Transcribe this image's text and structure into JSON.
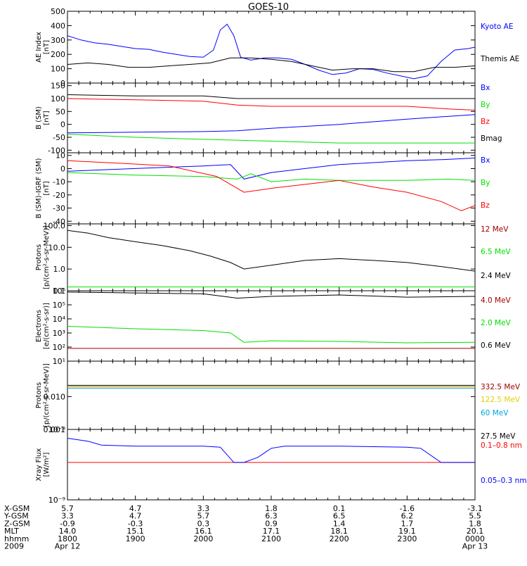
{
  "title": "GOES-10",
  "colors": {
    "black": "#000000",
    "blue": "#0000ff",
    "red": "#ff0000",
    "green": "#00e000",
    "darkred": "#a00000",
    "cyan": "#00a8e0",
    "yellow": "#e0d000"
  },
  "x_axis": {
    "start_hour": 18,
    "end_hour": 24,
    "date_row": {
      "label": "2009",
      "left": "Apr 12",
      "right": "Apr 13"
    },
    "rows": [
      {
        "label": "X-GSM",
        "values": [
          "5.7",
          "4.7",
          "3.3",
          "1.8",
          "0.1",
          "-1.6",
          "-3.1"
        ]
      },
      {
        "label": "Y-GSM",
        "values": [
          "3.3",
          "4.7",
          "5.7",
          "6.3",
          "6.5",
          "6.2",
          "5.5"
        ]
      },
      {
        "label": "Z-GSM",
        "values": [
          "-0.9",
          "-0.3",
          "0.3",
          "0.9",
          "1.4",
          "1.7",
          "1.8"
        ]
      },
      {
        "label": "MLT",
        "values": [
          "14.0",
          "15.1",
          "16.1",
          "17.1",
          "18.1",
          "19.1",
          "20.1"
        ]
      },
      {
        "label": "hhmm",
        "values": [
          "1800",
          "1900",
          "2000",
          "2100",
          "2200",
          "2300",
          "0000"
        ]
      }
    ]
  },
  "chart_data": [
    {
      "type": "line",
      "id": "ae",
      "ylabel": "AE Index\n[nT]",
      "ylim": [
        0,
        500
      ],
      "yticks": [
        "0",
        "100",
        "200",
        "300",
        "400",
        "500"
      ],
      "series": [
        {
          "name": "Kyoto AE",
          "color": "#0000ff",
          "x": [
            18.0,
            18.2,
            18.4,
            18.6,
            18.8,
            19.0,
            19.2,
            19.4,
            19.6,
            19.8,
            20.0,
            20.15,
            20.25,
            20.35,
            20.45,
            20.55,
            20.7,
            20.9,
            21.1,
            21.3,
            21.5,
            21.7,
            21.9,
            22.1,
            22.3,
            22.5,
            22.7,
            22.9,
            23.1,
            23.3,
            23.5,
            23.7,
            23.9,
            24.0
          ],
          "y": [
            330,
            300,
            280,
            270,
            255,
            240,
            235,
            215,
            200,
            185,
            180,
            230,
            370,
            410,
            330,
            180,
            160,
            175,
            175,
            165,
            130,
            90,
            60,
            70,
            100,
            95,
            70,
            50,
            30,
            50,
            150,
            230,
            240,
            250
          ]
        },
        {
          "name": "Themis AE",
          "color": "#000000",
          "x": [
            18.0,
            18.3,
            18.6,
            18.9,
            19.2,
            19.5,
            19.8,
            20.1,
            20.4,
            20.7,
            21.0,
            21.3,
            21.6,
            21.9,
            22.2,
            22.5,
            22.8,
            23.1,
            23.4,
            23.7,
            24.0
          ],
          "y": [
            130,
            140,
            130,
            110,
            110,
            120,
            130,
            140,
            175,
            175,
            165,
            150,
            120,
            90,
            100,
            100,
            80,
            80,
            110,
            110,
            120
          ]
        }
      ]
    },
    {
      "type": "line",
      "id": "bsm",
      "ylabel": "B (SM)\n[nT]",
      "ylim": [
        -110,
        160
      ],
      "yticks": [
        "-100",
        "-50",
        "0",
        "50",
        "100",
        "150"
      ],
      "series": [
        {
          "name": "Bx",
          "color": "#0000ff",
          "x": [
            18.0,
            19.0,
            20.0,
            20.5,
            21.0,
            22.0,
            23.0,
            24.0
          ],
          "y": [
            -33,
            -30,
            -28,
            -25,
            -15,
            0,
            20,
            38
          ]
        },
        {
          "name": "By",
          "color": "#00e000",
          "x": [
            18.0,
            19.0,
            20.0,
            21.0,
            22.0,
            23.0,
            24.0
          ],
          "y": [
            -38,
            -50,
            -58,
            -65,
            -72,
            -72,
            -72
          ]
        },
        {
          "name": "Bz",
          "color": "#ff0000",
          "x": [
            18.0,
            19.0,
            20.0,
            20.5,
            21.0,
            22.0,
            23.0,
            23.6,
            24.0
          ],
          "y": [
            100,
            95,
            90,
            75,
            70,
            70,
            70,
            60,
            55
          ]
        },
        {
          "name": "Bmag",
          "color": "#000000",
          "x": [
            18.0,
            19.0,
            20.0,
            20.5,
            21.0,
            22.0,
            23.0,
            24.0
          ],
          "y": [
            115,
            110,
            110,
            100,
            100,
            100,
            100,
            100
          ]
        }
      ]
    },
    {
      "type": "line",
      "id": "bdiff",
      "ylabel": "B (SM)-IGRF (SM)\n[nT]",
      "ylim": [
        -42,
        12
      ],
      "yticks": [
        "-40",
        "-30",
        "-20",
        "-10",
        "0",
        "10"
      ],
      "series": [
        {
          "name": "Bx",
          "color": "#0000ff",
          "x": [
            18.0,
            19.0,
            20.0,
            20.4,
            20.6,
            21.0,
            21.5,
            22.0,
            23.0,
            23.6,
            24.0
          ],
          "y": [
            -2,
            0,
            2,
            3,
            -8,
            -3,
            0,
            3,
            6,
            7,
            8
          ]
        },
        {
          "name": "By",
          "color": "#00e000",
          "x": [
            18.0,
            19.0,
            20.0,
            20.5,
            20.7,
            21.0,
            21.5,
            22.0,
            23.0,
            23.6,
            24.0
          ],
          "y": [
            -3,
            -5,
            -6,
            -8,
            -4,
            -10,
            -8,
            -9,
            -9,
            -8,
            -9
          ]
        },
        {
          "name": "Bz",
          "color": "#ff0000",
          "x": [
            18.0,
            18.8,
            19.5,
            20.2,
            20.4,
            20.6,
            21.0,
            21.5,
            22.0,
            22.5,
            23.0,
            23.5,
            23.8,
            24.0
          ],
          "y": [
            6,
            4,
            2,
            -6,
            -12,
            -18,
            -15,
            -12,
            -9,
            -14,
            -18,
            -25,
            -32,
            -28
          ]
        }
      ]
    },
    {
      "type": "line",
      "id": "protons1",
      "ylabel": "Protons\n[p/(cm²-s-sr-MeV)]",
      "yscale": "log",
      "ylim": [
        0.1,
        120
      ],
      "yticks": [
        "0.1",
        "1.0",
        "10.0",
        "100.0"
      ],
      "series": [
        {
          "name": "12 MeV",
          "color": "#a00000",
          "x": [
            18.0,
            24.0
          ],
          "y": [
            0.1,
            0.1
          ]
        },
        {
          "name": "6.5 MeV",
          "color": "#00e000",
          "x": [
            18.0,
            24.0
          ],
          "y": [
            0.15,
            0.15
          ]
        },
        {
          "name": "2.4 MeV",
          "color": "#000000",
          "x": [
            18.0,
            18.3,
            18.6,
            19.0,
            19.4,
            19.8,
            20.1,
            20.4,
            20.6,
            21.0,
            21.5,
            22.0,
            22.5,
            23.0,
            23.5,
            24.0
          ],
          "y": [
            60,
            45,
            28,
            18,
            12,
            7,
            4,
            2,
            1.0,
            1.5,
            2.5,
            3,
            2.5,
            2,
            1.3,
            0.8
          ]
        }
      ]
    },
    {
      "type": "line",
      "id": "electrons",
      "ylabel": "Electrons\n[e/(cm²-s-sr)]",
      "yscale": "log",
      "ylim": [
        10,
        1000000
      ],
      "yticks": [
        "10¹",
        "10²",
        "10³",
        "10⁴",
        "10⁵",
        "10⁶"
      ],
      "series": [
        {
          "name": "4.0 MeV",
          "color": "#a00000",
          "x": [
            18.0,
            24.0
          ],
          "y": [
            80,
            80
          ]
        },
        {
          "name": "2.0 MeV",
          "color": "#00e000",
          "x": [
            18.0,
            19.0,
            20.0,
            20.4,
            20.6,
            21.0,
            22.0,
            23.0,
            24.0
          ],
          "y": [
            3000,
            2000,
            1500,
            1000,
            220,
            280,
            250,
            200,
            220
          ]
        },
        {
          "name": "0.6 MeV",
          "color": "#000000",
          "x": [
            18.0,
            19.0,
            20.0,
            20.5,
            21.0,
            22.0,
            23.0,
            24.0
          ],
          "y": [
            800000,
            700000,
            600000,
            300000,
            400000,
            500000,
            350000,
            400000
          ]
        }
      ]
    },
    {
      "type": "line",
      "id": "protons2",
      "ylabel": "Protons\n[p/(cm²-s-sr-MeV)]",
      "yscale": "log",
      "ylim": [
        0.001,
        0.12
      ],
      "yticks": [
        "0.001",
        "0.010"
      ],
      "series": [
        {
          "name": "332.5 MeV",
          "color": "#a00000",
          "x": [
            18.0,
            24.0
          ],
          "y": [
            0.02,
            0.02
          ]
        },
        {
          "name": "122.5 MeV",
          "color": "#e0d000",
          "x": [
            18.0,
            24.0
          ],
          "y": [
            0.02,
            0.02
          ]
        },
        {
          "name": "60 MeV",
          "color": "#00a8e0",
          "x": [
            18.0,
            24.0
          ],
          "y": [
            0.018,
            0.018
          ]
        },
        {
          "name": "27.5 MeV",
          "color": "#000000",
          "x": [
            18.0,
            24.0
          ],
          "y": [
            0.022,
            0.022
          ]
        }
      ]
    },
    {
      "type": "line",
      "id": "xray",
      "ylabel": "Xray Flux\n[W/m²]",
      "yscale": "log",
      "ylim": [
        1e-09,
        1e-08
      ],
      "yticks": [
        "10⁻⁹",
        "10⁻⁸"
      ],
      "series": [
        {
          "name": "0.1–0.8 nm",
          "color": "#ff0000",
          "x": [
            18.0,
            24.0
          ],
          "y": [
            3.4e-09,
            3.4e-09
          ]
        },
        {
          "name": "0.05–0.3 nm",
          "color": "#0000ff",
          "x": [
            18.0,
            18.3,
            18.5,
            19.0,
            20.0,
            20.25,
            20.45,
            20.6,
            20.8,
            21.0,
            21.2,
            22.0,
            23.0,
            23.2,
            23.5,
            24.0
          ],
          "y": [
            7.5e-09,
            6.8e-09,
            6e-09,
            5.8e-09,
            5.8e-09,
            5.6e-09,
            3.4e-09,
            3.4e-09,
            4e-09,
            5.4e-09,
            5.8e-09,
            5.8e-09,
            5.6e-09,
            5.4e-09,
            3.4e-09,
            3.4e-09
          ]
        }
      ]
    }
  ]
}
